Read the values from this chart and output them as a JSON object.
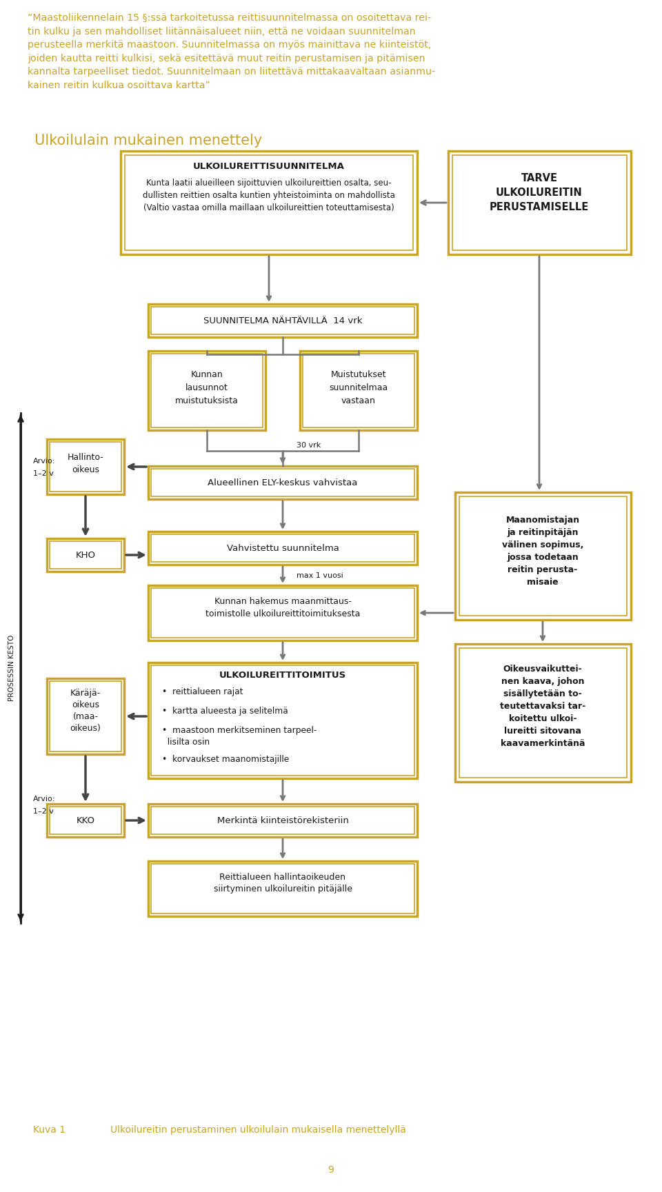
{
  "bg_color": "#ffffff",
  "gold_color": "#C8A428",
  "dark_color": "#1a1a1a",
  "quote_text": "“Maastoliikennelain 15 §:ssä tarkoitetussa reittisuunnitelmassa on osoitettava rei-\ntin kulku ja sen mahdolliset liitännäisalueet niin, että ne voidaan suunnitelman\nperusteella merkitä maastoon. Suunnitelmassa on myös mainittava ne kiinteistöt,\njoiden kautta reitti kulkisi, sekä esitettävä muut reitin perustamisen ja pitämisen\nkannalta tarpeelliset tiedot. Suunnitelmaan on liitettävä mittakaavaltaan asianmu-\nkainen reitin kulkua osoittava kartta”",
  "section_title": "Ulkoilulain mukainen menettely",
  "caption_label": "Kuva 1",
  "caption_text": "Ulkoilureitin perustaminen ulkoilulain mukaisella menettelyllä",
  "page_number": "9"
}
